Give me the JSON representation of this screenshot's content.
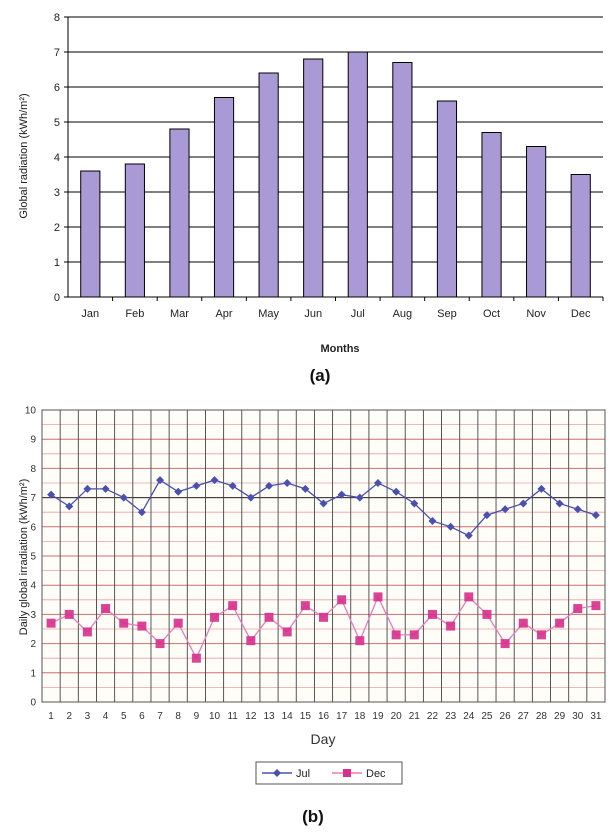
{
  "chart_data": [
    {
      "type": "bar",
      "caption": "(a)",
      "xlabel": "Months",
      "ylabel": "Global radiation (kWh/m²)",
      "ylim": [
        0,
        8
      ],
      "yticks": [
        0,
        1,
        2,
        3,
        4,
        5,
        6,
        7,
        8
      ],
      "grid": true,
      "categories": [
        "Jan",
        "Feb",
        "Mar",
        "Apr",
        "May",
        "Jun",
        "Jul",
        "Aug",
        "Sep",
        "Oct",
        "Nov",
        "Dec"
      ],
      "values": [
        3.6,
        3.8,
        4.8,
        5.7,
        6.4,
        6.8,
        7.0,
        6.7,
        5.6,
        4.7,
        4.3,
        3.5
      ],
      "bar_color": "#a99ad6"
    },
    {
      "type": "line",
      "caption": "(b)",
      "xlabel": "Day",
      "ylabel": "Daily global irradiation (kWh/m²)",
      "ylim": [
        0,
        10
      ],
      "yticks": [
        0,
        1,
        2,
        3,
        4,
        5,
        6,
        7,
        8,
        9,
        10
      ],
      "grid": true,
      "legend_position": "bottom",
      "x": [
        "1",
        "2",
        "3",
        "4",
        "5",
        "6",
        "7",
        "8",
        "9",
        "10",
        "11",
        "12",
        "13",
        "14",
        "15",
        "16",
        "17",
        "18",
        "19",
        "20",
        "21",
        "22",
        "23",
        "24",
        "25",
        "26",
        "27",
        "28",
        "29",
        "30",
        "31"
      ],
      "series": [
        {
          "name": "Jul",
          "color": "#4a50b0",
          "marker": "diamond",
          "values": [
            7.1,
            6.7,
            7.3,
            7.3,
            7.0,
            6.5,
            7.6,
            7.2,
            7.4,
            7.6,
            7.4,
            7.0,
            7.4,
            7.5,
            7.3,
            6.8,
            7.1,
            7.0,
            7.5,
            7.2,
            6.8,
            6.2,
            6.0,
            5.7,
            6.4,
            6.6,
            6.8,
            7.3,
            6.8,
            6.6,
            6.4
          ]
        },
        {
          "name": "Dec",
          "color": "#d6308c",
          "marker": "square",
          "values": [
            2.7,
            3.0,
            2.4,
            3.2,
            2.7,
            2.6,
            2.0,
            2.7,
            1.5,
            2.9,
            3.3,
            2.1,
            2.9,
            2.4,
            3.3,
            2.9,
            3.5,
            2.1,
            3.6,
            2.3,
            2.3,
            3.0,
            2.6,
            3.6,
            3.0,
            2.0,
            2.7,
            2.3,
            2.7,
            3.2,
            3.3
          ]
        }
      ]
    }
  ]
}
